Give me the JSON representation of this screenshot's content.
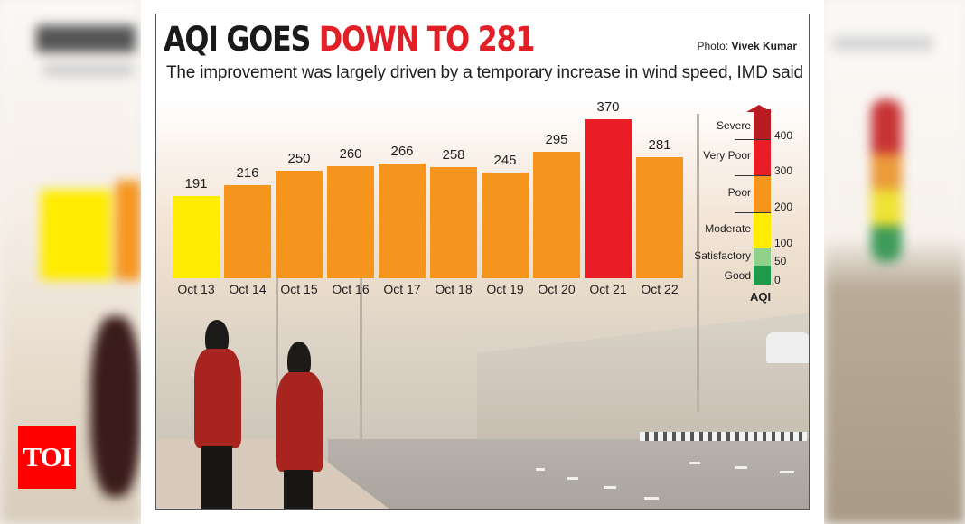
{
  "header": {
    "title_black": "AQI GOES ",
    "title_red": "DOWN TO 281",
    "subtitle": "The improvement was largely driven by a temporary increase in wind speed, IMD said",
    "credit_label": "Photo: ",
    "credit_name": "Vivek Kumar"
  },
  "logo": {
    "text": "TOI",
    "color": "#ff0000"
  },
  "colors": {
    "good": "#1e9a4b",
    "satisfactory": "#8fd18a",
    "moderate": "#ffec00",
    "poor": "#f5951e",
    "very_poor": "#e91d25",
    "severe": "#b81c22",
    "title_red": "#e21f26"
  },
  "chart_data": {
    "type": "bar",
    "title": "AQI GOES DOWN TO 281",
    "subtitle": "The improvement was largely driven by a temporary increase in wind speed, IMD said",
    "xlabel": "",
    "ylabel": "AQI",
    "categories": [
      "Oct 13",
      "Oct 14",
      "Oct 15",
      "Oct 16",
      "Oct 17",
      "Oct 18",
      "Oct 19",
      "Oct 20",
      "Oct 21",
      "Oct 22"
    ],
    "values": [
      191,
      216,
      250,
      260,
      266,
      258,
      245,
      295,
      370,
      281
    ],
    "bar_colors": [
      "#ffec00",
      "#f5951e",
      "#f5951e",
      "#f5951e",
      "#f5951e",
      "#f5951e",
      "#f5951e",
      "#f5951e",
      "#e91d25",
      "#f5951e"
    ],
    "ylim": [
      0,
      400
    ],
    "grid": false,
    "legend": {
      "title": "AQI",
      "position": "right",
      "categories": [
        {
          "label": "Severe",
          "range": "400+",
          "color": "#b81c22"
        },
        {
          "label": "Very Poor",
          "range": "300-400",
          "color": "#e91d25"
        },
        {
          "label": "Poor",
          "range": "200-300",
          "color": "#f5951e"
        },
        {
          "label": "Moderate",
          "range": "100-200",
          "color": "#ffec00"
        },
        {
          "label": "Satisfactory",
          "range": "50-100",
          "color": "#8fd18a"
        },
        {
          "label": "Good",
          "range": "0-50",
          "color": "#1e9a4b"
        }
      ],
      "ticks": [
        "400",
        "300",
        "200",
        "100",
        "50",
        "0"
      ]
    }
  }
}
